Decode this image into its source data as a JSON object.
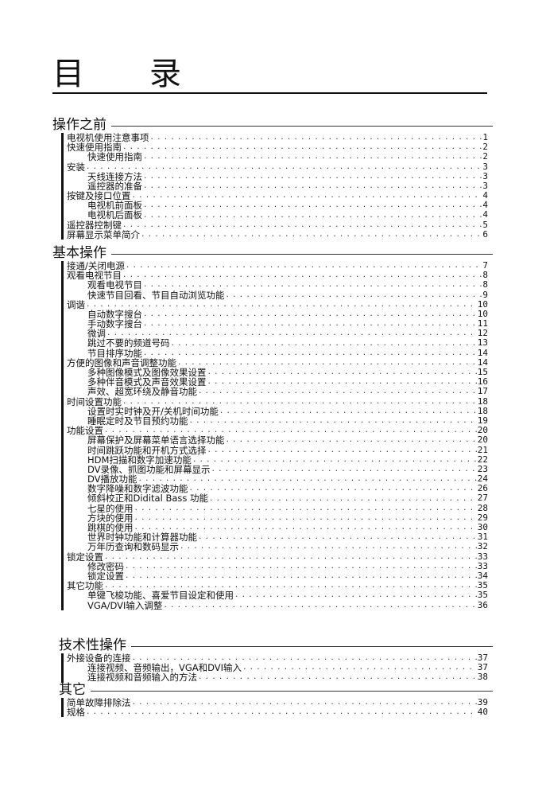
{
  "title": {
    "char1": "目",
    "char2": "录"
  },
  "sections": [
    {
      "heading": "操作之前",
      "entries": [
        {
          "label": "电视机使用注意事项",
          "page": "1",
          "level": 1
        },
        {
          "label": "快速使用指南",
          "page": "2",
          "level": 1
        },
        {
          "label": "快速使用指南",
          "page": "2",
          "level": 2
        },
        {
          "label": "安装",
          "page": "3",
          "level": 1
        },
        {
          "label": "天线连接方法",
          "page": "3",
          "level": 2
        },
        {
          "label": "遥控器的准备",
          "page": "3",
          "level": 2
        },
        {
          "label": "按键及接口位置",
          "page": "4",
          "level": 1
        },
        {
          "label": "电视机前面板",
          "page": "4",
          "level": 2
        },
        {
          "label": "电视机后面板",
          "page": "4",
          "level": 2
        },
        {
          "label": "遥控器控制键",
          "page": "5",
          "level": 1
        },
        {
          "label": "屏幕显示菜单简介",
          "page": "6",
          "level": 1
        }
      ]
    },
    {
      "heading": "基本操作",
      "entries": [
        {
          "label": "接通/关闭电源",
          "page": "7",
          "level": 1
        },
        {
          "label": "观看电视节目",
          "page": "8",
          "level": 1
        },
        {
          "label": "观看电视节目",
          "page": "8",
          "level": 2
        },
        {
          "label": "快速节目回看、节目自动浏览功能",
          "page": "9",
          "level": 2
        },
        {
          "label": "调谐",
          "page": "10",
          "level": 1
        },
        {
          "label": "自动数字搜台",
          "page": "10",
          "level": 2
        },
        {
          "label": "手动数字搜台",
          "page": "11",
          "level": 2
        },
        {
          "label": "微调",
          "page": "12",
          "level": 2
        },
        {
          "label": "跳过不要的频道号码",
          "page": "13",
          "level": 2
        },
        {
          "label": "节目排序功能",
          "page": "14",
          "level": 2
        },
        {
          "label": "方便的图像和声音调整功能",
          "page": "14",
          "level": 1
        },
        {
          "label": "多种图像模式及图像效果设置",
          "page": "15",
          "level": 2
        },
        {
          "label": "多种伴音模式及声音效果设置",
          "page": "16",
          "level": 2
        },
        {
          "label": "声效、超宽环绕及静音功能",
          "page": "17",
          "level": 2
        },
        {
          "label": "时间设置功能",
          "page": "18",
          "level": 1
        },
        {
          "label": "设置时实时钟及开/关机时间功能",
          "page": "18",
          "level": 2
        },
        {
          "label": "睡眠定时及节目预约功能",
          "page": "19",
          "level": 2
        },
        {
          "label": "功能设置",
          "page": "20",
          "level": 1
        },
        {
          "label": "屏幕保护及屏幕菜单语言选择功能",
          "page": "20",
          "level": 2
        },
        {
          "label": "时间跳跃功能和开机方式选择",
          "page": "21",
          "level": 2
        },
        {
          "label": "HDM扫描和数字加速功能",
          "page": "22",
          "level": 2
        },
        {
          "label": "DV录像、抓图功能和屏幕显示",
          "page": "23",
          "level": 2
        },
        {
          "label": "DV播放功能",
          "page": "24",
          "level": 2
        },
        {
          "label": "数字降噪和数字滤波功能",
          "page": "26",
          "level": 2
        },
        {
          "label": "倾斜校正和Didital Bass 功能",
          "page": "27",
          "level": 2
        },
        {
          "label": "七星的使用",
          "page": "28",
          "level": 2
        },
        {
          "label": "方块的使用",
          "page": "29",
          "level": 2
        },
        {
          "label": "跳棋的使用",
          "page": "30",
          "level": 2
        },
        {
          "label": "世界时钟功能和计算器功能",
          "page": "31",
          "level": 2
        },
        {
          "label": "万年历查询和数码显示",
          "page": "32",
          "level": 2
        },
        {
          "label": "锁定设置",
          "page": "33",
          "level": 1
        },
        {
          "label": "修改密码",
          "page": "33",
          "level": 2
        },
        {
          "label": "锁定设置",
          "page": "34",
          "level": 2
        },
        {
          "label": "其它功能",
          "page": "35",
          "level": 1
        },
        {
          "label": "单键飞梭功能、喜爱节目设定和使用",
          "page": "35",
          "level": 2
        },
        {
          "label": "VGA/DVI输入调整",
          "page": "36",
          "level": 2
        }
      ]
    },
    {
      "heading": "技术性操作",
      "entries": [
        {
          "label": "外接设备的连接",
          "page": "37",
          "level": 1
        },
        {
          "label": "连接视频、音频输出，VGA和DVI输入",
          "page": "37",
          "level": 2
        },
        {
          "label": "连接视频和音频输入的方法",
          "page": "38",
          "level": 2
        }
      ]
    },
    {
      "heading": "其它",
      "entries": [
        {
          "label": "简单故障排除法",
          "page": "39",
          "level": 1
        },
        {
          "label": "规格",
          "page": "40",
          "level": 1
        }
      ]
    }
  ]
}
